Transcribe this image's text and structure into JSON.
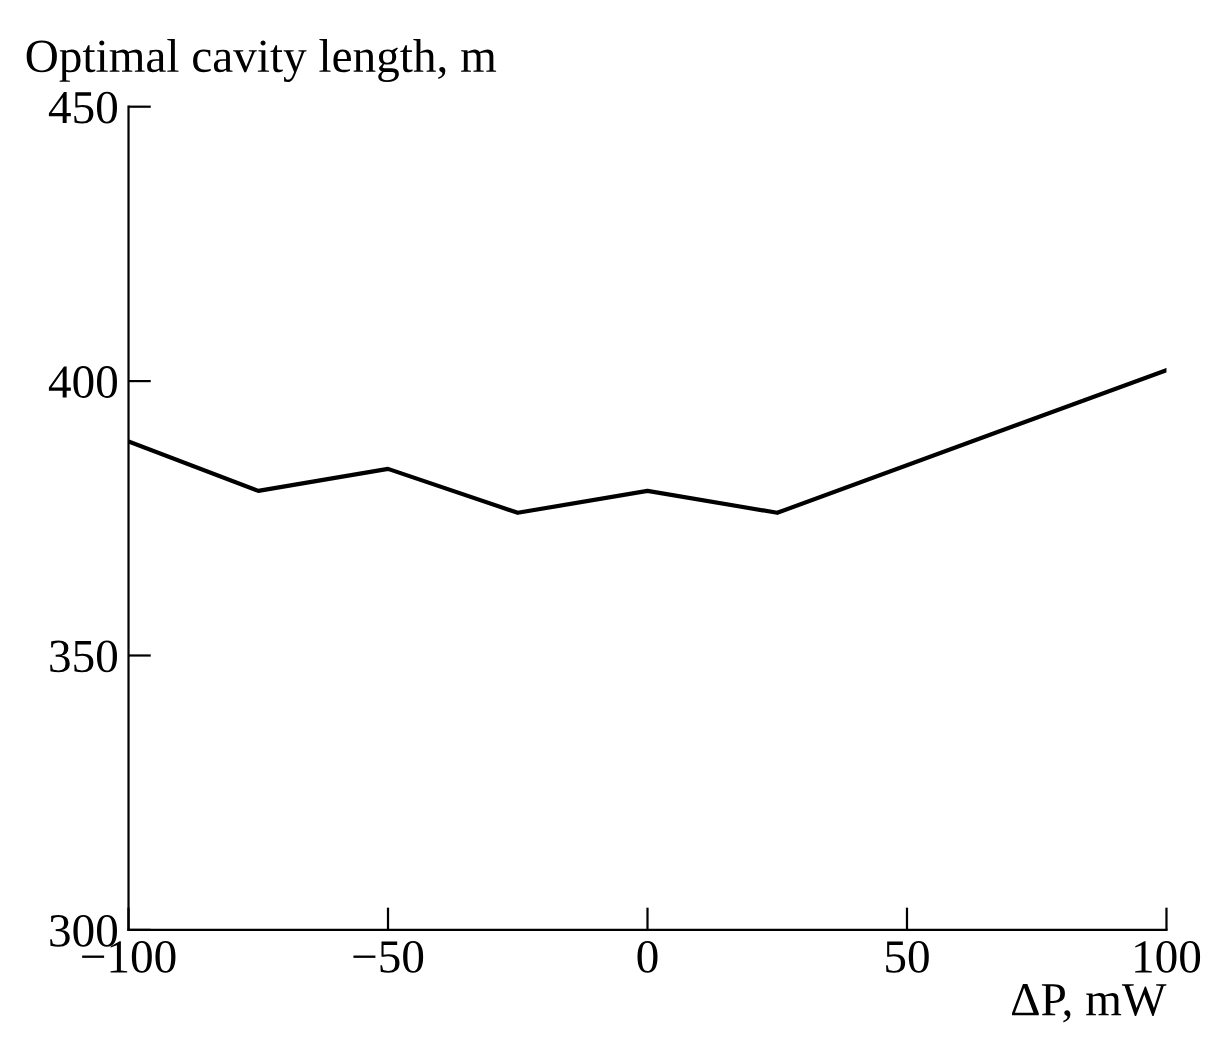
{
  "chart_data": {
    "type": "line",
    "ylabel": "Optimal cavity length, m",
    "xlabel": "ΔP, mW",
    "x": [
      -100,
      -75,
      -50,
      -25,
      0,
      25,
      100
    ],
    "series": [
      {
        "color": "#000000",
        "values": [
          389,
          380,
          384,
          376,
          380,
          376,
          402
        ]
      }
    ],
    "xlim": [
      -100,
      100
    ],
    "xticks": [
      {
        "value": -100,
        "label": "−100"
      },
      {
        "value": -50,
        "label": "−50"
      },
      0,
      50,
      100
    ],
    "ylim": [
      300,
      450
    ],
    "yticks": [
      300,
      350,
      400,
      450
    ],
    "grid": false,
    "legend": false,
    "marker": "none",
    "line_style": "solid"
  }
}
